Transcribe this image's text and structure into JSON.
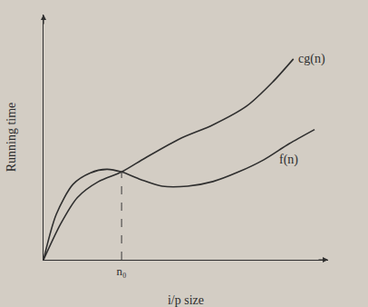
{
  "chart_data": {
    "type": "line",
    "x_label": "i/p size",
    "y_label": "Running time",
    "xlim": [
      0,
      10.5
    ],
    "ylim": [
      0,
      10
    ],
    "xticks": [
      {
        "value": 2.88,
        "label": "n₀"
      }
    ],
    "yticks": [],
    "tick_labels": "x",
    "grid": false,
    "series": [
      {
        "name": "cg(n)",
        "color": "#2f2f2f",
        "x": [
          0,
          0.63,
          1.25,
          2.03,
          2.88,
          3.75,
          5,
          6.25,
          7.5,
          8.44,
          9.22
        ],
        "values": [
          0,
          1.46,
          2.54,
          3.19,
          3.58,
          4.15,
          4.92,
          5.5,
          6.27,
          7.23,
          8.19
        ]
      },
      {
        "name": "f(n)",
        "color": "#2f2f2f",
        "x": [
          0,
          0.47,
          1.09,
          1.72,
          2.34,
          2.88,
          3.59,
          4.38,
          5.31,
          6.25,
          7.19,
          8.13,
          9.06,
          10
        ],
        "values": [
          0,
          1.85,
          3.08,
          3.54,
          3.69,
          3.58,
          3.27,
          3,
          3,
          3.19,
          3.58,
          4.08,
          4.73,
          5.31
        ]
      }
    ]
  }
}
